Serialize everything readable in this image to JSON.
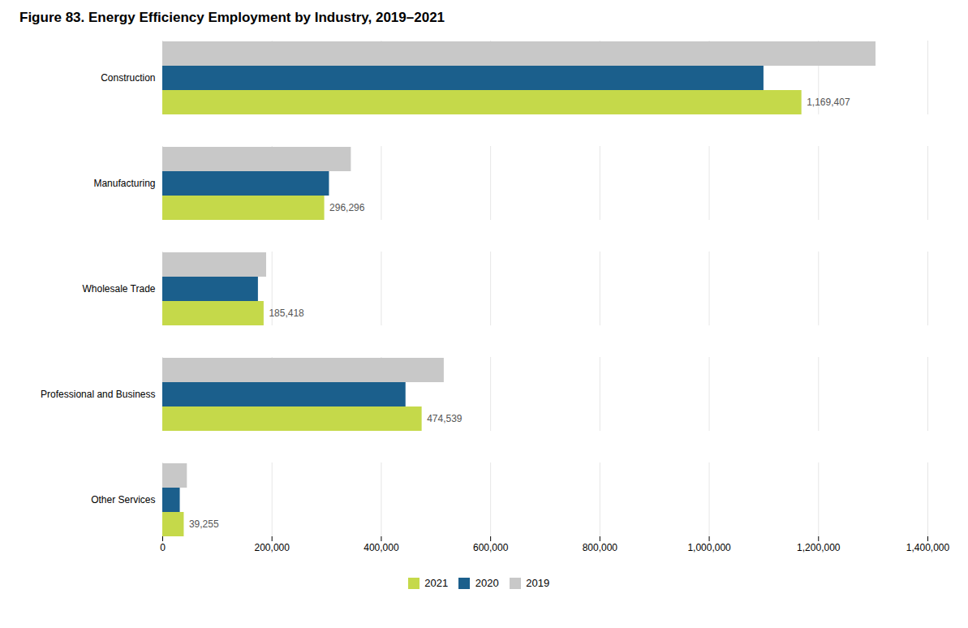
{
  "chart_data": {
    "type": "bar",
    "orientation": "horizontal",
    "title": "Figure 83. Energy Efficiency Employment by Industry, 2019–2021",
    "categories": [
      "Construction",
      "Manufacturing",
      "Wholesale Trade",
      "Professional and Business",
      "Other Services"
    ],
    "series": [
      {
        "name": "2021",
        "color": "#c5d94a",
        "values": [
          1169407,
          296296,
          185418,
          474539,
          39255
        ],
        "data_labels": true,
        "value_labels": [
          "1,169,407",
          "296,296",
          "185,418",
          "474,539",
          "39,255"
        ]
      },
      {
        "name": "2020",
        "color": "#1b5f8c",
        "values": [
          1100000,
          305000,
          175000,
          445000,
          32000
        ]
      },
      {
        "name": "2019",
        "color": "#c8c8c8",
        "values": [
          1305000,
          345000,
          190000,
          515000,
          45000
        ]
      }
    ],
    "xlim": [
      0,
      1400000
    ],
    "xticks": [
      0,
      {
        "value": 200000,
        "label": "200,000"
      },
      {
        "value": 400000,
        "label": "400,000"
      },
      {
        "value": 600000,
        "label": "600,000"
      },
      {
        "value": 800000,
        "label": "800,000"
      },
      {
        "value": 1000000,
        "label": "1,000,000"
      },
      {
        "value": 1200000,
        "label": "1,200,000"
      },
      {
        "value": 1400000,
        "label": "1,400,000"
      }
    ],
    "grid": true,
    "legend": "bottom"
  }
}
